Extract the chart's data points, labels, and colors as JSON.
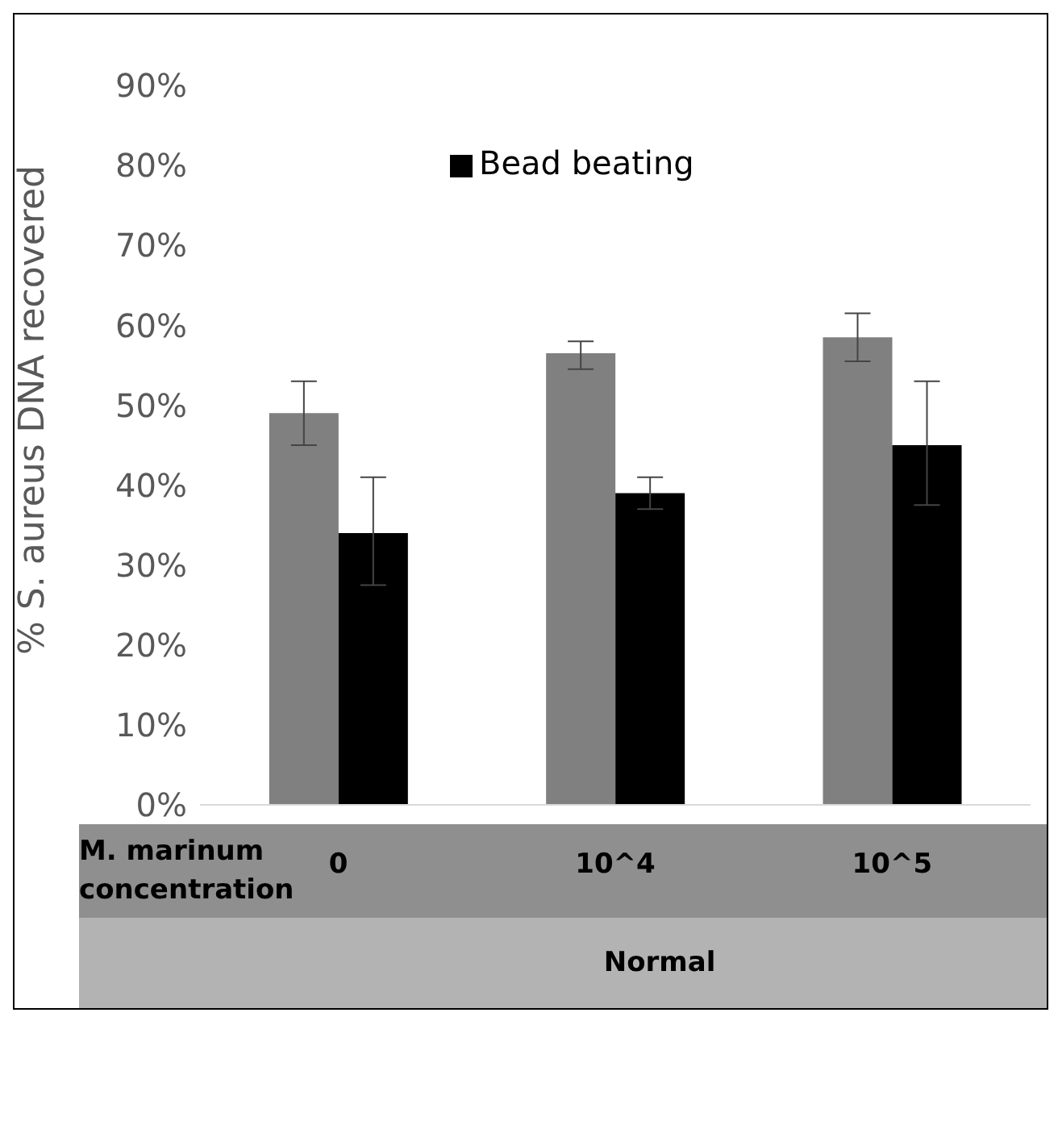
{
  "chart_data": {
    "type": "bar",
    "ylabel": "% S. aureus DNA recovered",
    "xlabel": "M. marinum concentration",
    "categories": [
      "0",
      "10^4",
      "10^5"
    ],
    "series": [
      {
        "color": "#808080",
        "values": [
          49,
          56.5,
          58.5
        ],
        "errors": [
          [
            45,
            53
          ],
          [
            54.5,
            58
          ],
          [
            55.5,
            61.5
          ]
        ]
      },
      {
        "name": "Bead beating",
        "color": "#000000",
        "values": [
          34,
          39,
          45
        ],
        "errors": [
          [
            27.5,
            41
          ],
          [
            37,
            41
          ],
          [
            37.5,
            53
          ]
        ]
      }
    ],
    "ylim": [
      0,
      90
    ],
    "yticks": [
      {
        "value": 0,
        "label": "0%"
      },
      {
        "value": 10,
        "label": "10%"
      },
      {
        "value": 20,
        "label": "20%"
      },
      {
        "value": 30,
        "label": "30%"
      },
      {
        "value": 40,
        "label": "40%"
      },
      {
        "value": 50,
        "label": "50%"
      },
      {
        "value": 60,
        "label": "60%"
      },
      {
        "value": 70,
        "label": "70%"
      },
      {
        "value": 80,
        "label": "80%"
      },
      {
        "value": 90,
        "label": "90%"
      }
    ],
    "grid": false,
    "legend": "top",
    "annotations": [
      "Normal"
    ]
  }
}
